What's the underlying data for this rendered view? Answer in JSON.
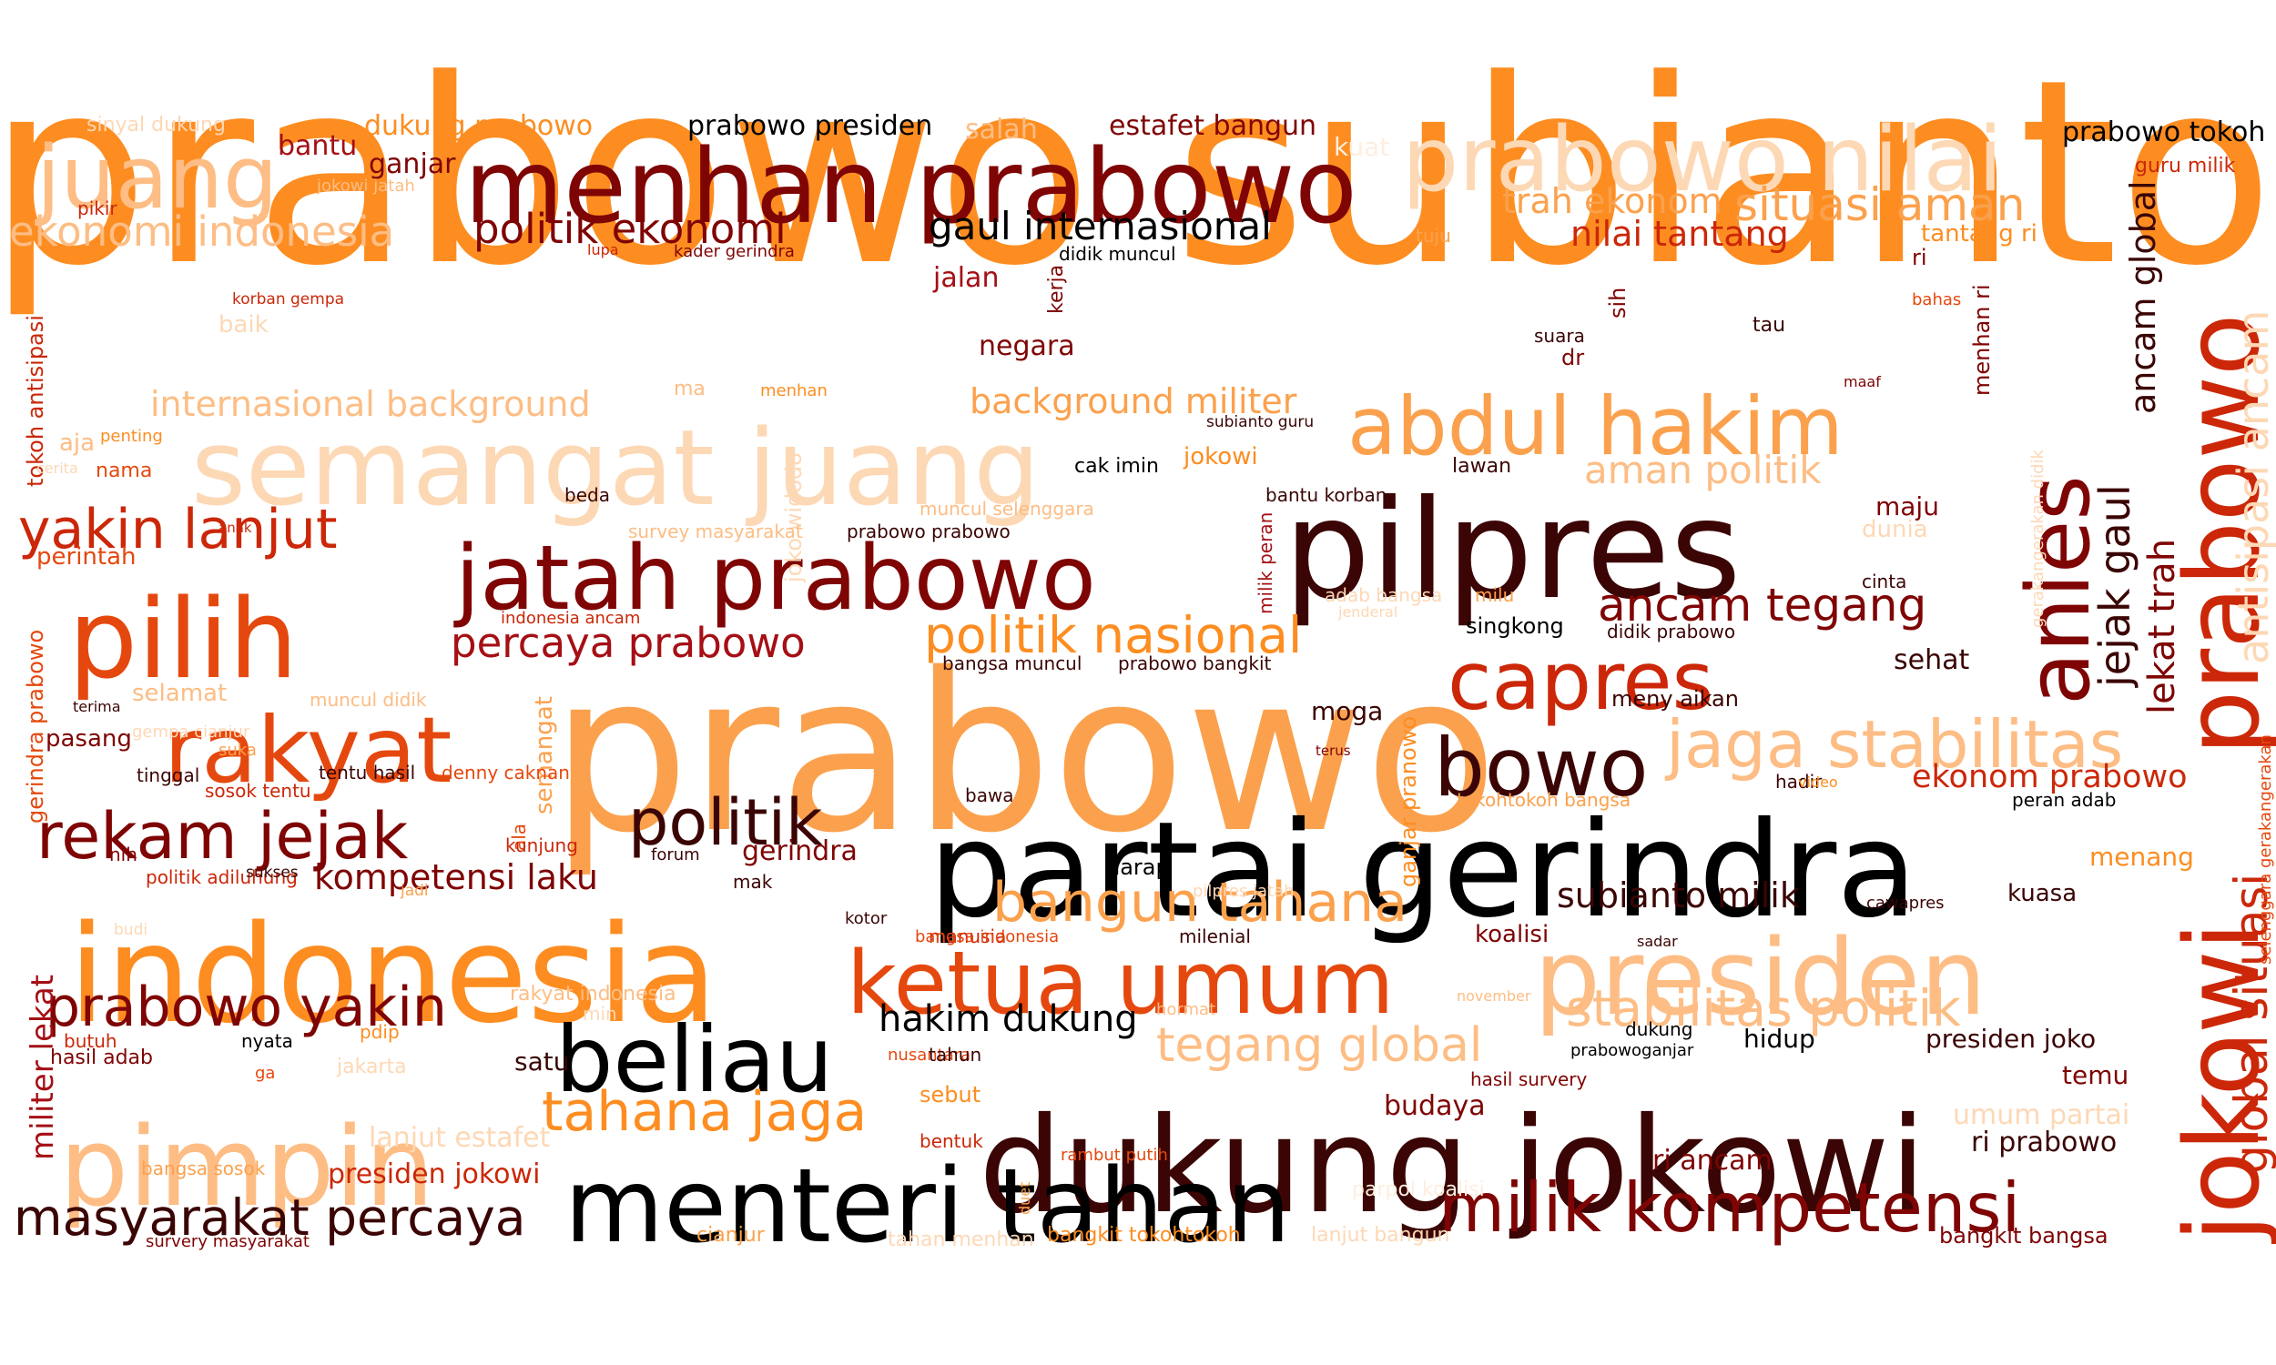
{
  "palette": {
    "black": "#000000",
    "maroon_dark": "#3a0504",
    "maroon": "#7f0404",
    "red_dark": "#a50f15",
    "red": "#cb2708",
    "red_orange": "#e5480e",
    "orange": "#fd8d21",
    "orange_mid": "#fba14d",
    "orange_light": "#fdbd84",
    "peach": "#fdd8b5",
    "peach_pale": "#feeede"
  },
  "words": [
    {
      "text": "prabowo subianto",
      "color": "orange"
    },
    {
      "text": "prabowo",
      "color": "orange_mid"
    },
    {
      "text": "partai gerindra",
      "color": "black"
    },
    {
      "text": "dukung jokowi",
      "color": "maroon_dark"
    },
    {
      "text": "jokowi",
      "color": "red"
    },
    {
      "text": "prabowo",
      "color": "red"
    },
    {
      "text": "indonesia",
      "color": "orange"
    },
    {
      "text": "menhan prabowo",
      "color": "maroon"
    },
    {
      "text": "semangat juang",
      "color": "peach"
    },
    {
      "text": "pilpres",
      "color": "maroon_dark"
    },
    {
      "text": "pimpin",
      "color": "orange_light"
    },
    {
      "text": "menteri tahan",
      "color": "black"
    },
    {
      "text": "presiden",
      "color": "orange_light"
    },
    {
      "text": "pilih",
      "color": "red_orange"
    },
    {
      "text": "prabowo nilai",
      "color": "peach"
    },
    {
      "text": "jatah prabowo",
      "color": "maroon"
    },
    {
      "text": "ketua umum",
      "color": "red_orange"
    },
    {
      "text": "beliau",
      "color": "black"
    },
    {
      "text": "juang",
      "color": "orange_light"
    },
    {
      "text": "rakyat",
      "color": "red_orange"
    },
    {
      "text": "abdul hakim",
      "color": "orange_mid"
    },
    {
      "text": "capres",
      "color": "red"
    },
    {
      "text": "anies",
      "color": "maroon"
    },
    {
      "text": "milik kompetensi",
      "color": "maroon"
    },
    {
      "text": "bowo",
      "color": "maroon_dark"
    },
    {
      "text": "rekam jejak",
      "color": "maroon"
    },
    {
      "text": "politik",
      "color": "maroon_dark"
    },
    {
      "text": "jaga stabilitas",
      "color": "orange_light"
    },
    {
      "text": "masyarakat percaya",
      "color": "maroon_dark"
    },
    {
      "text": "prabowo yakin",
      "color": "maroon"
    },
    {
      "text": "yakin lanjut",
      "color": "red"
    },
    {
      "text": "stabilitas politik",
      "color": "orange_light"
    },
    {
      "text": "tahana jaga",
      "color": "orange"
    },
    {
      "text": "bangun tahana",
      "color": "orange_mid"
    },
    {
      "text": "tegang global",
      "color": "orange_light"
    },
    {
      "text": "ekonomi indonesia",
      "color": "orange_light"
    },
    {
      "text": "situasi aman",
      "color": "orange_mid"
    },
    {
      "text": "politik ekonomi",
      "color": "maroon"
    },
    {
      "text": "gaul internasional",
      "color": "black"
    },
    {
      "text": "internasional background",
      "color": "orange_light"
    },
    {
      "text": "politik nasional",
      "color": "orange"
    },
    {
      "text": "percaya prabowo",
      "color": "red_dark"
    },
    {
      "text": "ancam tegang",
      "color": "maroon"
    },
    {
      "text": "background militer",
      "color": "orange_mid"
    },
    {
      "text": "aman politik",
      "color": "orange_light"
    },
    {
      "text": "trah ekonom",
      "color": "orange_mid"
    },
    {
      "text": "nilai tantang",
      "color": "red"
    },
    {
      "text": "hakim dukung",
      "color": "black"
    },
    {
      "text": "global situasi",
      "color": "red"
    },
    {
      "text": "antisipasi ancam",
      "color": "peach"
    },
    {
      "text": "ancam global",
      "color": "maroon_dark"
    },
    {
      "text": "jejak gaul",
      "color": "maroon_dark"
    },
    {
      "text": "lekat trah",
      "color": "maroon"
    },
    {
      "text": "ekonom prabowo",
      "color": "red"
    },
    {
      "text": "subianto milik",
      "color": "maroon_dark"
    },
    {
      "text": "kompetensi laku",
      "color": "maroon"
    },
    {
      "text": "militer lekat",
      "color": "red_dark"
    },
    {
      "text": "presiden jokowi",
      "color": "red"
    },
    {
      "text": "dukung prabowo",
      "color": "orange"
    },
    {
      "text": "prabowo presiden",
      "color": "black"
    },
    {
      "text": "estafet bangun",
      "color": "maroon"
    },
    {
      "text": "prabowo tokoh",
      "color": "black"
    },
    {
      "text": "ganjar",
      "color": "maroon"
    },
    {
      "text": "bantu",
      "color": "red_dark"
    },
    {
      "text": "salah",
      "color": "orange_light"
    },
    {
      "text": "kuat",
      "color": "peach_pale"
    },
    {
      "text": "jalan",
      "color": "red_dark"
    },
    {
      "text": "negara",
      "color": "maroon"
    },
    {
      "text": "perintah",
      "color": "red_orange"
    },
    {
      "text": "pasang",
      "color": "maroon"
    },
    {
      "text": "selamat",
      "color": "orange_light"
    },
    {
      "text": "tokoh antisipasi",
      "color": "red"
    },
    {
      "text": "gerindra prabowo",
      "color": "red_orange"
    },
    {
      "text": "joko widodo",
      "color": "peach"
    },
    {
      "text": "semangat",
      "color": "orange_mid"
    },
    {
      "text": "ganjar pranowo",
      "color": "orange"
    },
    {
      "text": "milik peran",
      "color": "red_dark"
    },
    {
      "text": "moga",
      "color": "maroon_dark"
    },
    {
      "text": "maju",
      "color": "maroon"
    },
    {
      "text": "sehat",
      "color": "maroon_dark"
    },
    {
      "text": "singkong",
      "color": "black"
    },
    {
      "text": "dunia",
      "color": "peach"
    },
    {
      "text": "menang",
      "color": "orange"
    },
    {
      "text": "kuasa",
      "color": "maroon_dark"
    },
    {
      "text": "hidup",
      "color": "black"
    },
    {
      "text": "temu",
      "color": "maroon"
    },
    {
      "text": "presiden joko",
      "color": "maroon_dark"
    },
    {
      "text": "ri prabowo",
      "color": "maroon_dark"
    },
    {
      "text": "ri ancam",
      "color": "maroon"
    },
    {
      "text": "umum partai",
      "color": "peach"
    },
    {
      "text": "budaya",
      "color": "maroon"
    },
    {
      "text": "koalisi",
      "color": "maroon"
    },
    {
      "text": "harap",
      "color": "black"
    },
    {
      "text": "gerindra",
      "color": "maroon"
    },
    {
      "text": "satu",
      "color": "maroon_dark"
    },
    {
      "text": "lanjut estafet",
      "color": "peach"
    },
    {
      "text": "bangkit tokohtokoh",
      "color": "orange"
    },
    {
      "text": "tahan menhan",
      "color": "peach"
    },
    {
      "text": "cianjur",
      "color": "orange_mid"
    },
    {
      "text": "lanjut bangun",
      "color": "peach"
    },
    {
      "text": "bangkit bangsa",
      "color": "maroon"
    },
    {
      "text": "rakyat indonesia",
      "color": "orange_light"
    },
    {
      "text": "hasil adab",
      "color": "maroon"
    },
    {
      "text": "butuh",
      "color": "red"
    },
    {
      "text": "bangsa sosok",
      "color": "orange_mid"
    },
    {
      "text": "survery masyarakat",
      "color": "maroon"
    },
    {
      "text": "dr",
      "color": "maroon"
    },
    {
      "text": "tau",
      "color": "maroon_dark"
    },
    {
      "text": "suara",
      "color": "maroon_dark"
    },
    {
      "text": "sih",
      "color": "maroon"
    },
    {
      "text": "ri",
      "color": "maroon"
    },
    {
      "text": "menhan ri",
      "color": "maroon"
    },
    {
      "text": "tuju",
      "color": "orange_mid"
    },
    {
      "text": "tantang ri",
      "color": "orange"
    },
    {
      "text": "guru milik",
      "color": "red"
    },
    {
      "text": "bahas",
      "color": "red_orange"
    },
    {
      "text": "maaf",
      "color": "maroon"
    },
    {
      "text": "kerja",
      "color": "maroon"
    },
    {
      "text": "didik muncul",
      "color": "black"
    },
    {
      "text": "kader gerindra",
      "color": "maroon"
    },
    {
      "text": "lupa",
      "color": "red"
    },
    {
      "text": "jokowi jatah",
      "color": "orange_light"
    },
    {
      "text": "pikir",
      "color": "red"
    },
    {
      "text": "sinyal dukung",
      "color": "peach"
    },
    {
      "text": "korban gempa",
      "color": "red"
    },
    {
      "text": "baik",
      "color": "peach"
    },
    {
      "text": "ma",
      "color": "orange_light"
    },
    {
      "text": "menhan",
      "color": "orange"
    },
    {
      "text": "aja",
      "color": "orange_light"
    },
    {
      "text": "penting",
      "color": "orange"
    },
    {
      "text": "cerita",
      "color": "peach"
    },
    {
      "text": "nama",
      "color": "red_orange"
    },
    {
      "text": "anak",
      "color": "red"
    },
    {
      "text": "jokowi",
      "color": "orange"
    },
    {
      "text": "subianto guru",
      "color": "maroon_dark"
    },
    {
      "text": "cak imin",
      "color": "black"
    },
    {
      "text": "lawan",
      "color": "maroon_dark"
    },
    {
      "text": "bantu korban",
      "color": "maroon_dark"
    },
    {
      "text": "beda",
      "color": "maroon_dark"
    },
    {
      "text": "survey masyarakat",
      "color": "orange_light"
    },
    {
      "text": "muncul selenggara",
      "color": "orange_light"
    },
    {
      "text": "prabowo prabowo",
      "color": "maroon_dark"
    },
    {
      "text": "indonesia ancam",
      "color": "red"
    },
    {
      "text": "adab bangsa",
      "color": "peach"
    },
    {
      "text": "milu",
      "color": "orange_mid"
    },
    {
      "text": "jenderal",
      "color": "peach"
    },
    {
      "text": "didik prabowo",
      "color": "maroon_dark"
    },
    {
      "text": "cinta",
      "color": "maroon_dark"
    },
    {
      "text": "meny aikan",
      "color": "maroon_dark"
    },
    {
      "text": "bangsa muncul",
      "color": "maroon_dark"
    },
    {
      "text": "prabowo bangkit",
      "color": "maroon_dark"
    },
    {
      "text": "terus",
      "color": "maroon"
    },
    {
      "text": "tokohtokoh bangsa",
      "color": "orange_mid"
    },
    {
      "text": "hadir",
      "color": "maroon_dark"
    },
    {
      "text": "video",
      "color": "orange"
    },
    {
      "text": "peran adab",
      "color": "black"
    },
    {
      "text": "gerakangerakan didik",
      "color": "peach"
    },
    {
      "text": "selenggara gerakangerakan",
      "color": "red_orange"
    },
    {
      "text": "terima",
      "color": "maroon_dark"
    },
    {
      "text": "muncul didik",
      "color": "orange_light"
    },
    {
      "text": "gempa cianjur",
      "color": "peach"
    },
    {
      "text": "suka",
      "color": "orange_mid"
    },
    {
      "text": "tentu hasil",
      "color": "maroon_dark"
    },
    {
      "text": "tinggal",
      "color": "maroon_dark"
    },
    {
      "text": "denny caknan",
      "color": "red_orange"
    },
    {
      "text": "sosok tentu",
      "color": "red"
    },
    {
      "text": "ala",
      "color": "red_orange"
    },
    {
      "text": "bawa",
      "color": "maroon_dark"
    },
    {
      "text": "nih",
      "color": "maroon"
    },
    {
      "text": "kunjung",
      "color": "red"
    },
    {
      "text": "politik adiluhung",
      "color": "red"
    },
    {
      "text": "sukses",
      "color": "maroon_dark"
    },
    {
      "text": "forum",
      "color": "maroon_dark"
    },
    {
      "text": "mak",
      "color": "maroon_dark"
    },
    {
      "text": "jadi",
      "color": "orange_mid"
    },
    {
      "text": "kotor",
      "color": "maroon_dark"
    },
    {
      "text": "pilpres jatah",
      "color": "peach"
    },
    {
      "text": "budi",
      "color": "peach"
    },
    {
      "text": "manusia",
      "color": "red"
    },
    {
      "text": "bangsa indonesia",
      "color": "red_orange"
    },
    {
      "text": "milenial",
      "color": "maroon_dark"
    },
    {
      "text": "sadar",
      "color": "maroon_dark"
    },
    {
      "text": "cawapres",
      "color": "maroon_dark"
    },
    {
      "text": "hormat",
      "color": "orange_light"
    },
    {
      "text": "november",
      "color": "orange_light"
    },
    {
      "text": "min",
      "color": "peach"
    },
    {
      "text": "pdip",
      "color": "orange"
    },
    {
      "text": "nyata",
      "color": "black"
    },
    {
      "text": "ga",
      "color": "red_orange"
    },
    {
      "text": "jakarta",
      "color": "peach"
    },
    {
      "text": "nusantara",
      "color": "red_orange"
    },
    {
      "text": "tahun",
      "color": "maroon_dark"
    },
    {
      "text": "sebut",
      "color": "orange"
    },
    {
      "text": "bentuk",
      "color": "red"
    },
    {
      "text": "prabowoganjar",
      "color": "black"
    },
    {
      "text": "dukung",
      "color": "black"
    },
    {
      "text": "hasil survery",
      "color": "maroon"
    },
    {
      "text": "duet",
      "color": "orange_mid"
    },
    {
      "text": "rambut putih",
      "color": "red_orange"
    },
    {
      "text": "parpol koalisi",
      "color": "peach_pale"
    }
  ]
}
